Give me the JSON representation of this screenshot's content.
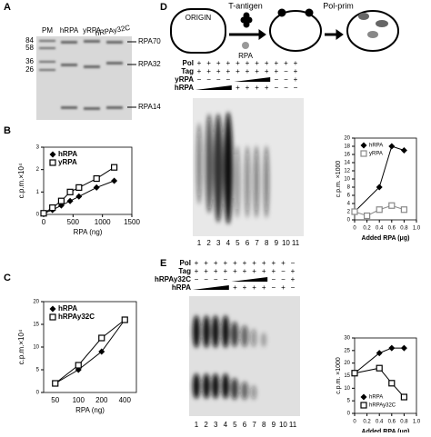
{
  "panel_labels": [
    "A",
    "B",
    "C",
    "D",
    "E"
  ],
  "gel_a": {
    "columns": [
      "PM",
      "hRPA",
      "yRPA",
      "hRPAy32C"
    ],
    "markers": [
      84,
      58,
      36,
      26
    ],
    "bands": [
      "RPA70",
      "RPA32",
      "RPA14"
    ]
  },
  "diagram_d": {
    "origin": "ORIGIN",
    "tag": "T-antigen",
    "rpa": "RPA",
    "polprim": "Pol-prim"
  },
  "gel_d": {
    "rows": [
      {
        "name": "Pol",
        "signs": [
          "+",
          "+",
          "+",
          "+",
          "+",
          "+",
          "+",
          "+",
          "+",
          "+",
          "+"
        ]
      },
      {
        "name": "Tag",
        "signs": [
          "+",
          "+",
          "+",
          "+",
          "+",
          "+",
          "+",
          "+",
          "+",
          "−",
          "+"
        ]
      },
      {
        "name": "yRPA",
        "signs": [
          "−",
          "−",
          "−",
          "−",
          null,
          null,
          null,
          null,
          "−",
          "−",
          "+"
        ]
      },
      {
        "name": "hRPA",
        "signs": [
          null,
          null,
          null,
          null,
          "+",
          "+",
          "+",
          "+",
          "−",
          "−",
          "−"
        ]
      }
    ],
    "lanes": [
      1,
      2,
      3,
      4,
      5,
      6,
      7,
      8,
      9,
      10,
      11
    ]
  },
  "gel_e": {
    "rows": [
      {
        "name": "Pol",
        "signs": [
          "+",
          "+",
          "+",
          "+",
          "+",
          "+",
          "+",
          "+",
          "+",
          "+",
          "−"
        ]
      },
      {
        "name": "Tag",
        "signs": [
          "+",
          "+",
          "+",
          "+",
          "+",
          "+",
          "+",
          "+",
          "+",
          "−",
          "+"
        ]
      },
      {
        "name": "hRPAy32C",
        "signs": [
          "−",
          "−",
          "−",
          "−",
          null,
          null,
          null,
          null,
          "−",
          "−",
          "+"
        ]
      },
      {
        "name": "hRPA",
        "signs": [
          null,
          null,
          null,
          null,
          "+",
          "+",
          "+",
          "+",
          "−",
          "+",
          "−"
        ]
      }
    ],
    "lanes": [
      1,
      2,
      3,
      4,
      5,
      6,
      7,
      8,
      9,
      10,
      11
    ]
  },
  "chart_data": [
    {
      "type": "line",
      "xlabel": "RPA (ng)",
      "ylabel": "c.p.m.×10⁴",
      "x": [
        0,
        150,
        300,
        450,
        600,
        900,
        1200
      ],
      "xlim": [
        0,
        1500
      ],
      "xticks": [
        0,
        500,
        1000,
        1500
      ],
      "ylim": [
        0,
        3
      ],
      "yticks": [
        0,
        1,
        2,
        3
      ],
      "legend": "upper left",
      "series": [
        {
          "name": "hRPA",
          "color": "#000000",
          "marker": "diamond",
          "values": [
            0.05,
            0.2,
            0.4,
            0.6,
            0.8,
            1.2,
            1.5
          ]
        },
        {
          "name": "yRPA",
          "color": "#000000",
          "marker": "square",
          "values": [
            0.05,
            0.3,
            0.6,
            1.0,
            1.2,
            1.6,
            2.1
          ]
        }
      ]
    },
    {
      "type": "line",
      "xlabel": "RPA (ng)",
      "ylabel": "c.p.m.×10⁴",
      "categories": [
        "50",
        "100",
        "200",
        "400"
      ],
      "ylim": [
        0,
        20
      ],
      "yticks": [
        0,
        5,
        10,
        15,
        20
      ],
      "legend": "upper left",
      "series": [
        {
          "name": "hRPA",
          "color": "#000000",
          "marker": "diamond",
          "values": [
            2,
            5,
            9,
            16
          ]
        },
        {
          "name": "hRPAy32C",
          "color": "#000000",
          "marker": "square",
          "values": [
            2,
            6,
            12,
            16
          ]
        }
      ]
    },
    {
      "type": "line",
      "xlabel": "Added RPA (μg)",
      "ylabel": "c.p.m. ×1000",
      "xlim": [
        0,
        1
      ],
      "xticks": [
        0,
        0.2,
        0.4,
        0.6,
        0.8,
        {
          "value": 1,
          "label": "1.0"
        }
      ],
      "ylim": [
        0,
        20
      ],
      "yticks": [
        0,
        2,
        4,
        6,
        8,
        10,
        12,
        14,
        16,
        18,
        20
      ],
      "legend": "upper left",
      "series": [
        {
          "name": "hRPA",
          "color": "#000000",
          "marker": "diamond",
          "x": [
            0,
            0.4,
            0.6,
            0.8
          ],
          "values": [
            2,
            8,
            18,
            17
          ]
        },
        {
          "name": "yRPA",
          "color": "#888888",
          "marker": "square",
          "x": [
            0,
            0.2,
            0.4,
            0.6,
            0.8
          ],
          "values": [
            2,
            1,
            2.5,
            3.5,
            2.5
          ]
        }
      ]
    },
    {
      "type": "line",
      "xlabel": "Added RPA (μg)",
      "ylabel": "c.p.m. ×1000",
      "xlim": [
        0,
        1
      ],
      "xticks": [
        0,
        0.2,
        0.4,
        0.6,
        0.8,
        {
          "value": 1,
          "label": "1.0"
        }
      ],
      "ylim": [
        0,
        30
      ],
      "yticks": [
        0,
        5,
        10,
        15,
        20,
        25,
        30
      ],
      "legend": "lower left",
      "series": [
        {
          "name": "hRPA",
          "color": "#000000",
          "marker": "diamond",
          "x": [
            0,
            0.4,
            0.6,
            0.8
          ],
          "values": [
            16,
            24,
            26,
            26
          ]
        },
        {
          "name": "hRPAy32C",
          "color": "#000000",
          "marker": "square",
          "x": [
            0,
            0.4,
            0.6,
            0.8
          ],
          "values": [
            16,
            18,
            12,
            6.5
          ]
        }
      ]
    }
  ]
}
